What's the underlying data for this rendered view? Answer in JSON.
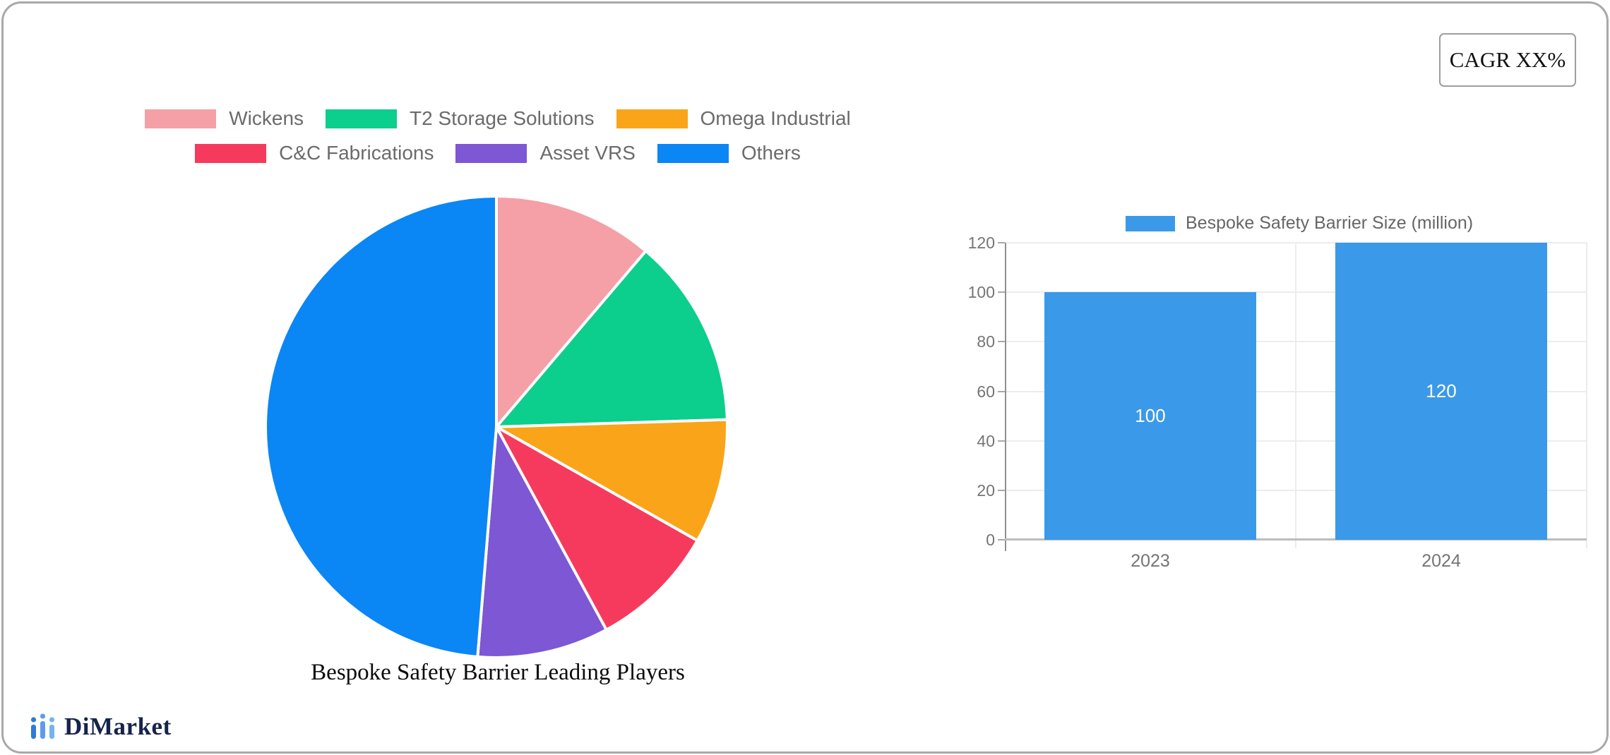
{
  "cagr_label": "CAGR XX%",
  "brand": {
    "name": "DiMarket"
  },
  "pie": {
    "title": "Bespoke Safety Barrier Leading Players",
    "legend_rows": [
      [
        0,
        1,
        2
      ],
      [
        3,
        4,
        5
      ]
    ]
  },
  "bar": {
    "legend_label": "Bespoke Safety Barrier Size (million)"
  },
  "chart_data": [
    {
      "type": "pie",
      "title": "Bespoke Safety Barrier Leading Players",
      "labels": [
        "Wickens",
        "T2 Storage Solutions",
        "Omega Industrial",
        "C&C Fabrications",
        "Asset VRS",
        "Others"
      ],
      "values": [
        11.2,
        13.3,
        8.7,
        8.9,
        9.2,
        48.7
      ],
      "unit": "percent share (estimated from slice angles)",
      "colors": [
        "#f4a0a6",
        "#0cce8d",
        "#faa41a",
        "#f63a5d",
        "#7d57d4",
        "#0a86f5"
      ],
      "slice_border_color": "#ffffff",
      "start_angle": "12-oclock",
      "direction": "clockwise",
      "legend_position": "top"
    },
    {
      "type": "bar",
      "categories": [
        "2023",
        "2024"
      ],
      "series": [
        {
          "name": "Bespoke Safety Barrier Size (million)",
          "values": [
            100,
            120
          ]
        }
      ],
      "value_labels": [
        "100",
        "120"
      ],
      "bar_color": "#3b99e9",
      "value_label_color": "#ffffff",
      "ylim": [
        0,
        120
      ],
      "yticks": [
        0,
        20,
        40,
        60,
        80,
        100,
        120
      ],
      "grid": true,
      "legend_position": "top"
    }
  ]
}
